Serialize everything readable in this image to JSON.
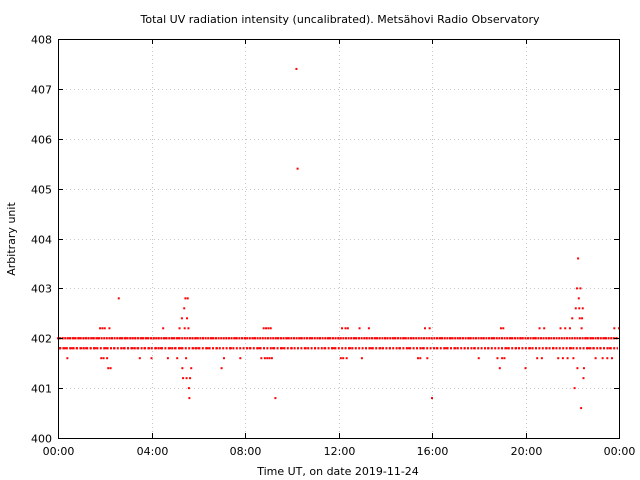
{
  "chart_data": {
    "type": "scatter",
    "title": "Total UV radiation intensity (uncalibrated). Metsähovi Radio Observatory",
    "xlabel": "Time UT, on date 2019-11-24",
    "ylabel": "Arbitrary unit",
    "xlim": [
      0,
      24
    ],
    "ylim": [
      400,
      408
    ],
    "x_ticks": [
      {
        "value": 0,
        "label": "00:00"
      },
      {
        "value": 4,
        "label": "04:00"
      },
      {
        "value": 8,
        "label": "08:00"
      },
      {
        "value": 12,
        "label": "12:00"
      },
      {
        "value": 16,
        "label": "16:00"
      },
      {
        "value": 20,
        "label": "20:00"
      },
      {
        "value": 24,
        "label": "00:00"
      }
    ],
    "y_ticks": [
      400,
      401,
      402,
      403,
      404,
      405,
      406,
      407,
      408
    ],
    "grid": true,
    "color": "#ff0000",
    "series": [
      {
        "points": [
          [
            0.0,
            402.0
          ],
          [
            0.1,
            401.8
          ],
          [
            0.2,
            402.0
          ],
          [
            0.3,
            401.8
          ],
          [
            0.4,
            401.6
          ],
          [
            0.5,
            402.0
          ],
          [
            0.6,
            401.8
          ],
          [
            0.7,
            402.0
          ],
          [
            0.8,
            401.8
          ],
          [
            0.9,
            402.0
          ],
          [
            1.0,
            401.8
          ],
          [
            1.1,
            402.0
          ],
          [
            1.2,
            401.8
          ],
          [
            1.3,
            402.0
          ],
          [
            1.4,
            401.8
          ],
          [
            1.5,
            402.0
          ],
          [
            1.6,
            401.8
          ],
          [
            1.7,
            402.0
          ],
          [
            1.8,
            402.2
          ],
          [
            1.85,
            401.6
          ],
          [
            1.9,
            402.2
          ],
          [
            1.95,
            401.6
          ],
          [
            2.0,
            402.2
          ],
          [
            2.05,
            401.8
          ],
          [
            2.1,
            401.6
          ],
          [
            2.15,
            401.4
          ],
          [
            2.2,
            402.2
          ],
          [
            2.25,
            401.4
          ],
          [
            2.3,
            402.0
          ],
          [
            2.4,
            401.8
          ],
          [
            2.6,
            402.8
          ],
          [
            2.7,
            402.0
          ],
          [
            2.8,
            401.8
          ],
          [
            2.9,
            402.0
          ],
          [
            3.0,
            401.8
          ],
          [
            3.1,
            402.0
          ],
          [
            3.2,
            401.8
          ],
          [
            3.3,
            402.0
          ],
          [
            3.4,
            401.8
          ],
          [
            3.5,
            401.6
          ],
          [
            3.6,
            402.0
          ],
          [
            3.7,
            401.8
          ],
          [
            3.8,
            402.0
          ],
          [
            3.9,
            401.8
          ],
          [
            4.0,
            401.6
          ],
          [
            4.1,
            402.0
          ],
          [
            4.2,
            401.8
          ],
          [
            4.3,
            402.0
          ],
          [
            4.4,
            401.8
          ],
          [
            4.5,
            402.2
          ],
          [
            4.6,
            402.0
          ],
          [
            4.7,
            401.6
          ],
          [
            4.8,
            401.8
          ],
          [
            4.9,
            402.0
          ],
          [
            5.0,
            401.8
          ],
          [
            5.1,
            401.6
          ],
          [
            5.15,
            402.0
          ],
          [
            5.2,
            402.2
          ],
          [
            5.25,
            401.8
          ],
          [
            5.3,
            402.4
          ],
          [
            5.32,
            401.4
          ],
          [
            5.35,
            401.2
          ],
          [
            5.4,
            402.6
          ],
          [
            5.42,
            402.2
          ],
          [
            5.45,
            402.8
          ],
          [
            5.48,
            401.6
          ],
          [
            5.5,
            401.2
          ],
          [
            5.52,
            402.4
          ],
          [
            5.55,
            402.8
          ],
          [
            5.58,
            402.2
          ],
          [
            5.6,
            401.0
          ],
          [
            5.62,
            400.8
          ],
          [
            5.65,
            401.2
          ],
          [
            5.7,
            401.4
          ],
          [
            5.75,
            402.0
          ],
          [
            5.8,
            401.8
          ],
          [
            5.9,
            402.0
          ],
          [
            6.0,
            401.8
          ],
          [
            6.2,
            402.0
          ],
          [
            6.4,
            401.8
          ],
          [
            6.6,
            402.0
          ],
          [
            6.8,
            401.8
          ],
          [
            7.0,
            401.4
          ],
          [
            7.1,
            401.6
          ],
          [
            7.2,
            402.0
          ],
          [
            7.4,
            401.8
          ],
          [
            7.6,
            402.0
          ],
          [
            7.8,
            401.6
          ],
          [
            8.0,
            402.0
          ],
          [
            8.2,
            401.8
          ],
          [
            8.4,
            402.0
          ],
          [
            8.6,
            401.8
          ],
          [
            8.7,
            401.6
          ],
          [
            8.8,
            402.2
          ],
          [
            8.85,
            401.6
          ],
          [
            8.9,
            402.2
          ],
          [
            8.95,
            401.6
          ],
          [
            9.0,
            402.2
          ],
          [
            9.05,
            401.6
          ],
          [
            9.1,
            402.2
          ],
          [
            9.15,
            401.6
          ],
          [
            9.2,
            401.8
          ],
          [
            9.3,
            400.8
          ],
          [
            9.4,
            402.0
          ],
          [
            9.6,
            401.8
          ],
          [
            9.8,
            402.0
          ],
          [
            10.0,
            401.8
          ],
          [
            10.2,
            407.4
          ],
          [
            10.25,
            405.4
          ],
          [
            10.4,
            402.0
          ],
          [
            10.6,
            401.8
          ],
          [
            10.8,
            402.0
          ],
          [
            11.0,
            401.8
          ],
          [
            11.2,
            402.0
          ],
          [
            11.4,
            401.8
          ],
          [
            11.6,
            402.0
          ],
          [
            11.8,
            401.8
          ],
          [
            12.0,
            402.0
          ],
          [
            12.1,
            401.6
          ],
          [
            12.15,
            402.2
          ],
          [
            12.2,
            401.6
          ],
          [
            12.3,
            402.2
          ],
          [
            12.35,
            401.6
          ],
          [
            12.4,
            402.2
          ],
          [
            12.5,
            401.8
          ],
          [
            12.7,
            402.0
          ],
          [
            12.9,
            402.2
          ],
          [
            13.0,
            401.6
          ],
          [
            13.2,
            402.0
          ],
          [
            13.3,
            402.2
          ],
          [
            13.4,
            401.8
          ],
          [
            13.6,
            402.0
          ],
          [
            13.8,
            401.8
          ],
          [
            14.0,
            402.0
          ],
          [
            14.2,
            401.8
          ],
          [
            14.4,
            402.0
          ],
          [
            14.6,
            401.8
          ],
          [
            14.8,
            402.0
          ],
          [
            15.0,
            401.8
          ],
          [
            15.2,
            402.0
          ],
          [
            15.4,
            401.6
          ],
          [
            15.5,
            401.6
          ],
          [
            15.6,
            401.8
          ],
          [
            15.7,
            402.2
          ],
          [
            15.8,
            401.6
          ],
          [
            15.9,
            402.2
          ],
          [
            16.0,
            400.8
          ],
          [
            16.2,
            401.8
          ],
          [
            16.4,
            402.0
          ],
          [
            16.6,
            401.8
          ],
          [
            16.8,
            402.0
          ],
          [
            17.0,
            401.8
          ],
          [
            17.2,
            402.0
          ],
          [
            17.4,
            401.8
          ],
          [
            17.6,
            402.0
          ],
          [
            17.8,
            401.8
          ],
          [
            18.0,
            401.6
          ],
          [
            18.2,
            402.0
          ],
          [
            18.4,
            401.8
          ],
          [
            18.6,
            402.0
          ],
          [
            18.8,
            401.6
          ],
          [
            18.9,
            401.4
          ],
          [
            18.95,
            402.2
          ],
          [
            19.0,
            401.6
          ],
          [
            19.05,
            402.2
          ],
          [
            19.1,
            401.6
          ],
          [
            19.2,
            401.8
          ],
          [
            19.4,
            402.0
          ],
          [
            19.6,
            401.8
          ],
          [
            19.8,
            402.0
          ],
          [
            20.0,
            401.4
          ],
          [
            20.2,
            401.8
          ],
          [
            20.4,
            402.0
          ],
          [
            20.5,
            401.6
          ],
          [
            20.6,
            402.2
          ],
          [
            20.7,
            401.6
          ],
          [
            20.8,
            402.2
          ],
          [
            20.9,
            401.8
          ],
          [
            21.0,
            402.0
          ],
          [
            21.2,
            401.8
          ],
          [
            21.4,
            401.6
          ],
          [
            21.5,
            402.2
          ],
          [
            21.6,
            401.6
          ],
          [
            21.7,
            402.2
          ],
          [
            21.8,
            401.6
          ],
          [
            21.9,
            402.2
          ],
          [
            21.95,
            401.8
          ],
          [
            22.0,
            402.4
          ],
          [
            22.05,
            401.6
          ],
          [
            22.1,
            401.0
          ],
          [
            22.15,
            402.6
          ],
          [
            22.2,
            403.0
          ],
          [
            22.22,
            401.4
          ],
          [
            22.25,
            403.6
          ],
          [
            22.28,
            402.8
          ],
          [
            22.3,
            402.6
          ],
          [
            22.32,
            402.4
          ],
          [
            22.35,
            403.0
          ],
          [
            22.38,
            400.6
          ],
          [
            22.4,
            402.2
          ],
          [
            22.42,
            402.4
          ],
          [
            22.45,
            402.6
          ],
          [
            22.48,
            401.2
          ],
          [
            22.5,
            401.4
          ],
          [
            22.6,
            402.0
          ],
          [
            22.7,
            401.8
          ],
          [
            22.8,
            402.0
          ],
          [
            22.9,
            401.8
          ],
          [
            23.0,
            401.6
          ],
          [
            23.1,
            402.0
          ],
          [
            23.2,
            401.8
          ],
          [
            23.3,
            401.6
          ],
          [
            23.4,
            402.0
          ],
          [
            23.5,
            401.6
          ],
          [
            23.6,
            401.8
          ],
          [
            23.7,
            401.6
          ],
          [
            23.8,
            402.2
          ],
          [
            23.9,
            402.0
          ],
          [
            24.0,
            402.2
          ]
        ]
      }
    ]
  }
}
